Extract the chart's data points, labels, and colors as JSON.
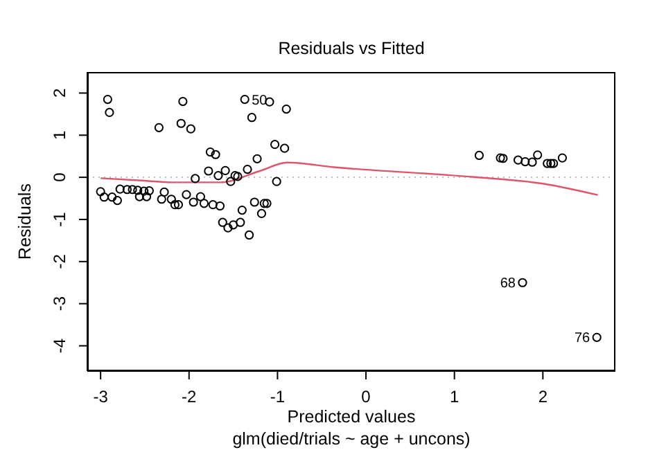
{
  "chart_data": {
    "type": "scatter",
    "title": "Residuals vs Fitted",
    "xlabel": "Predicted values",
    "subtitle": "glm(died/trials ~ age + uncons)",
    "ylabel": "Residuals",
    "xlim": [
      -3.15,
      2.82
    ],
    "ylim": [
      -4.6,
      2.5
    ],
    "xticks": [
      -3,
      -2,
      -1,
      0,
      1,
      2
    ],
    "yticks": [
      -4,
      -3,
      -2,
      -1,
      0,
      1,
      2
    ],
    "marker": "circle",
    "series": [
      {
        "color": "#000000",
        "x": [
          -2.92,
          -2.9,
          -2.07,
          -2.34,
          -2.09,
          -1.98,
          -1.37,
          -1.09,
          -1.29,
          -0.9,
          -1.76,
          -1.7,
          -1.03,
          -0.92,
          -1.23,
          -1.78,
          -1.67,
          -1.59,
          -1.93,
          -1.34,
          -1.48,
          -1.45,
          -1.53,
          -1.01,
          -3.0,
          -2.96,
          -2.87,
          -2.81,
          -2.78,
          -2.7,
          -2.64,
          -2.58,
          -2.51,
          -2.45,
          -2.56,
          -2.48,
          -2.28,
          -2.31,
          -2.2,
          -2.16,
          -2.12,
          -2.03,
          -1.95,
          -1.87,
          -1.83,
          -1.73,
          -1.65,
          -1.62,
          -1.56,
          -1.5,
          -1.42,
          -1.32,
          -1.4,
          -1.26,
          -1.18,
          -1.15,
          -1.12,
          1.28,
          1.52,
          1.55,
          1.72,
          1.8,
          1.88,
          1.94,
          2.05,
          2.09,
          2.12,
          2.22,
          1.77,
          2.61
        ],
        "values": [
          1.85,
          1.54,
          1.8,
          1.18,
          1.28,
          1.15,
          1.85,
          1.79,
          1.42,
          1.62,
          0.6,
          0.54,
          0.78,
          0.69,
          0.44,
          0.15,
          0.04,
          0.16,
          -0.03,
          0.19,
          0.04,
          0.02,
          -0.1,
          -0.1,
          -0.34,
          -0.47,
          -0.47,
          -0.55,
          -0.28,
          -0.29,
          -0.29,
          -0.31,
          -0.33,
          -0.32,
          -0.46,
          -0.46,
          -0.35,
          -0.52,
          -0.52,
          -0.65,
          -0.65,
          -0.41,
          -0.59,
          -0.46,
          -0.62,
          -0.65,
          -0.68,
          -1.07,
          -1.2,
          -1.13,
          -1.07,
          -1.37,
          -0.78,
          -0.59,
          -0.86,
          -0.62,
          -0.62,
          0.52,
          0.46,
          0.45,
          0.41,
          0.37,
          0.36,
          0.53,
          0.33,
          0.33,
          0.33,
          0.46,
          -2.5,
          -3.8
        ]
      },
      {
        "type": "line",
        "color": "#df536b",
        "marker": "none",
        "x": [
          -3,
          -2.5,
          -2.2,
          -1.65,
          -1.2,
          -0.89,
          -0.36,
          1.2,
          2.0,
          2.62
        ],
        "values": [
          -0.02,
          -0.08,
          -0.12,
          -0.12,
          0.15,
          0.35,
          0.24,
          0.01,
          -0.15,
          -0.42
        ]
      }
    ],
    "ref_lines": [
      {
        "axis": "y",
        "value": 0,
        "color": "#bebebe",
        "line_style": "dotted"
      }
    ],
    "annotations": [
      {
        "text": "50",
        "x": -1.37,
        "y": 1.85
      },
      {
        "text": "68",
        "x": 1.77,
        "y": -2.5
      },
      {
        "text": "76",
        "x": 2.61,
        "y": -3.8
      }
    ]
  }
}
